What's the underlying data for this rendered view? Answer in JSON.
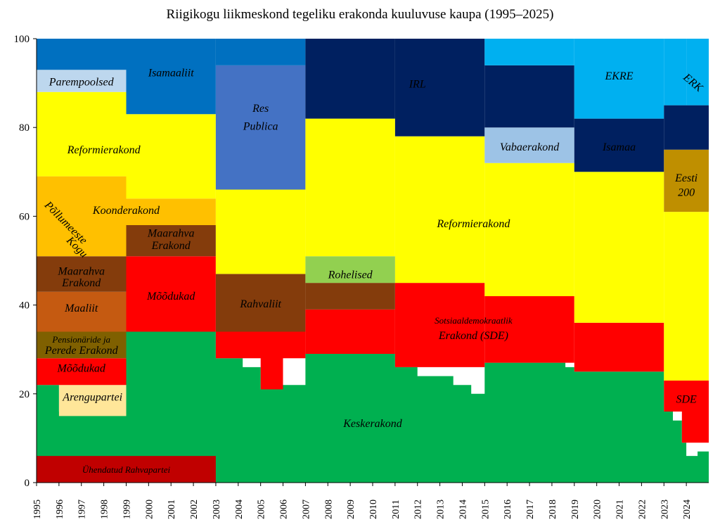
{
  "chart_data": {
    "type": "area",
    "title": "Riigikogu liikmeskond tegeliku erakonda kuuluvuse kaupa (1995–2025)",
    "xlabel": "",
    "ylabel": "",
    "xlim": [
      1995,
      2025
    ],
    "ylim": [
      0,
      100
    ],
    "y_ticks": [
      0,
      20,
      40,
      60,
      80,
      100
    ],
    "x_ticks": [
      1995,
      1996,
      1997,
      1998,
      1999,
      2000,
      2001,
      2002,
      2003,
      2004,
      2005,
      2006,
      2007,
      2008,
      2009,
      2010,
      2011,
      2012,
      2013,
      2014,
      2015,
      2016,
      2017,
      2018,
      2019,
      2020,
      2021,
      2022,
      2023,
      2024
    ],
    "grid": false,
    "legend": "none (labels drawn inside areas)",
    "colors": {
      "Ühendatud Rahvapartei": "#c00000",
      "Keskerakond": "#00b050",
      "Arengupartei": "#ffe699",
      "Mõõdukad": "#ff0000",
      "Pensionäride ja Perede Erakond": "#7f6000",
      "Maaliit": "#c55a11",
      "Maarahva Erakond": "#843c0c",
      "Põllumeeste Kogu": "#ffc000",
      "Koonderakond": "#ffc000",
      "Reformierakond": "#ffff00",
      "Parempoolsed": "#bdd7ee",
      "Isamaaliit": "#0070c0",
      "Res Publica": "#4472c4",
      "Rahvaliit": "#843c0c",
      "Rohelised": "#92d050",
      "IRL": "#002060",
      "Sotsiaaldemokraatlik Erakond (SDE)": "#ff0000",
      "Vabaerakond": "#9dc3e6",
      "EKRE": "#00b0f0",
      "Isamaa": "#002060",
      "Eesti 200": "#bf8f00",
      "ERK": "#00b0f0",
      "non-affiliated": "#bfbfbf",
      "Maarahva Erakond (small)": "#1f3864"
    },
    "series": [
      {
        "name": "Ühendatud Rahvapartei",
        "x": [
          1995,
          2003
        ],
        "values": [
          6,
          6
        ]
      },
      {
        "name": "Keskerakond",
        "x": [
          1995,
          1999,
          2003,
          2007,
          2011,
          2015,
          2019,
          2023,
          2024,
          2025
        ],
        "values": [
          16,
          28,
          28,
          28,
          28,
          27,
          25,
          25,
          7,
          7
        ]
      },
      {
        "name": "Arengupartei",
        "x": [
          1996,
          1999
        ],
        "values": [
          6,
          6
        ]
      },
      {
        "name": "Mõõdukad",
        "x": [
          1995,
          1999,
          2003
        ],
        "values": [
          6,
          17,
          17
        ]
      },
      {
        "name": "Pensionäride ja Perede Erakond",
        "x": [
          1995,
          1999
        ],
        "values": [
          6,
          6
        ]
      },
      {
        "name": "Maaliit",
        "x": [
          1995,
          1999
        ],
        "values": [
          9,
          9
        ]
      },
      {
        "name": "Maarahva Erakond",
        "x": [
          1995,
          1999,
          2003
        ],
        "values": [
          8,
          7,
          7
        ]
      },
      {
        "name": "Põllumeeste Kogu",
        "x": [
          1995,
          1999
        ],
        "values": [
          18,
          10
        ]
      },
      {
        "name": "Koonderakond",
        "x": [
          1995,
          1999,
          2003
        ],
        "values": [
          0,
          6,
          6
        ]
      },
      {
        "name": "Reformierakond",
        "x": [
          1995,
          1999,
          2003,
          2007,
          2011,
          2015,
          2019,
          2023,
          2025
        ],
        "values": [
          19,
          18,
          23,
          35,
          25,
          30,
          34,
          34,
          40
        ]
      },
      {
        "name": "Parempoolsed",
        "x": [
          1995,
          1999
        ],
        "values": [
          5,
          5
        ]
      },
      {
        "name": "Isamaaliit",
        "x": [
          1995,
          1999,
          2003
        ],
        "values": [
          7,
          17,
          17
        ]
      },
      {
        "name": "Res Publica",
        "x": [
          2003,
          2007
        ],
        "values": [
          28,
          25
        ]
      },
      {
        "name": "Rahvaliit",
        "x": [
          2003,
          2007,
          2011
        ],
        "values": [
          13,
          16,
          6
        ]
      },
      {
        "name": "Rohelised",
        "x": [
          2007,
          2011
        ],
        "values": [
          6,
          6
        ]
      },
      {
        "name": "IRL",
        "x": [
          2007,
          2011,
          2015,
          2019
        ],
        "values": [
          18,
          22,
          17,
          14
        ]
      },
      {
        "name": "Sotsiaaldemokraatlik Erakond (SDE)",
        "x": [
          2003,
          2007,
          2011,
          2015,
          2019,
          2023,
          2025
        ],
        "values": [
          6,
          10,
          19,
          19,
          11,
          9,
          14
        ]
      },
      {
        "name": "Vabaerakond",
        "x": [
          2015,
          2019
        ],
        "values": [
          6,
          6
        ]
      },
      {
        "name": "EKRE",
        "x": [
          2015,
          2019,
          2023
        ],
        "values": [
          6,
          19,
          12
        ]
      },
      {
        "name": "Isamaa",
        "x": [
          2019,
          2023,
          2025
        ],
        "values": [
          12,
          13,
          10
        ]
      },
      {
        "name": "Eesti 200",
        "x": [
          2023,
          2025
        ],
        "values": [
          14,
          14
        ]
      },
      {
        "name": "ERK",
        "x": [
          2024,
          2025
        ],
        "values": [
          10,
          10
        ]
      }
    ],
    "labels": [
      {
        "text": "Ühendatud Rahvapartei",
        "x": 1999,
        "y": 2.2
      },
      {
        "text": "Keskerakond",
        "x": 2010,
        "y": 12.5
      },
      {
        "text": "Arengupartei",
        "x": 1997.5,
        "y": 18.5
      },
      {
        "text": "Mõõdukad",
        "x": 1997,
        "y": 25
      },
      {
        "text": "Pensionäride ja",
        "x": 1997,
        "y": 31.5
      },
      {
        "text": "Perede Erakond",
        "x": 1997,
        "y": 29
      },
      {
        "text": "Maaliit",
        "x": 1997,
        "y": 38.5
      },
      {
        "text": "Maarahva",
        "x": 1997,
        "y": 46.8
      },
      {
        "text": "Erakond",
        "x": 1997,
        "y": 44.2
      },
      {
        "text": "Põllumeeste",
        "x": 1996.2,
        "y": 58,
        "rotate": 45
      },
      {
        "text": "Kogu",
        "x": 1996.7,
        "y": 52.5,
        "rotate": 45
      },
      {
        "text": "Koonderakond",
        "x": 1999,
        "y": 60.5
      },
      {
        "text": "Maarahva",
        "x": 2001,
        "y": 55.4
      },
      {
        "text": "Erakond",
        "x": 2001,
        "y": 52.6
      },
      {
        "text": "Mõõdukad",
        "x": 2001,
        "y": 41.2
      },
      {
        "text": "Reformierakond",
        "x": 1998,
        "y": 74.2
      },
      {
        "text": "Parempoolsed",
        "x": 1997,
        "y": 89.5
      },
      {
        "text": "Isamaaliit",
        "x": 2001,
        "y": 91.5
      },
      {
        "text": "Res",
        "x": 2005,
        "y": 83.5
      },
      {
        "text": "Publica",
        "x": 2005,
        "y": 79.5
      },
      {
        "text": "Rahvaliit",
        "x": 2005,
        "y": 39.5
      },
      {
        "text": "Rohelised",
        "x": 2009,
        "y": 46
      },
      {
        "text": "IRL",
        "x": 2012,
        "y": 89
      },
      {
        "text": "Reformierakond",
        "x": 2014.5,
        "y": 57.5
      },
      {
        "text": "Sotsiaaldemokraatlik",
        "x": 2014.5,
        "y": 35.8
      },
      {
        "text": "Erakond (SDE)",
        "x": 2014.5,
        "y": 32.3
      },
      {
        "text": "Vabaerakond",
        "x": 2017,
        "y": 74.8
      },
      {
        "text": "EKRE",
        "x": 2021,
        "y": 90.8
      },
      {
        "text": "Isamaa",
        "x": 2021,
        "y": 74.8
      },
      {
        "text": "Eesti",
        "x": 2024,
        "y": 67.8
      },
      {
        "text": "200",
        "x": 2024,
        "y": 64.6
      },
      {
        "text": "ERK",
        "x": 2024.2,
        "y": 89.5,
        "rotate": 40
      },
      {
        "text": "SDE",
        "x": 2024,
        "y": 18
      }
    ]
  }
}
